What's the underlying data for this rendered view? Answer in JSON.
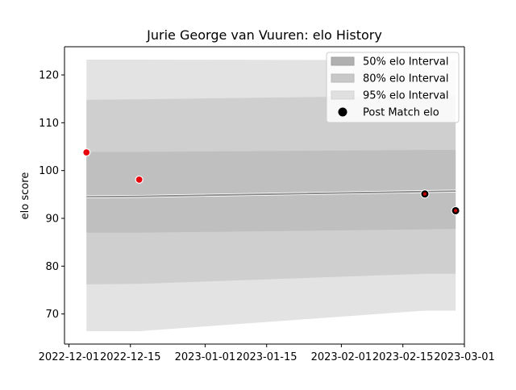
{
  "chart_data": {
    "type": "area",
    "title": "Jurie George van Vuuren: elo History",
    "xlabel": "",
    "ylabel": "elo score",
    "x_axis": {
      "type": "date",
      "range": [
        "2022-11-30",
        "2023-03-01"
      ],
      "ticks": [
        "2022-12-01",
        "2022-12-15",
        "2023-01-01",
        "2023-01-15",
        "2023-02-01",
        "2023-02-15",
        "2023-03-01"
      ]
    },
    "y_axis": {
      "range": [
        63.7,
        125.9
      ],
      "ticks": [
        70,
        80,
        90,
        100,
        110,
        120
      ]
    },
    "grid": false,
    "legend": {
      "placement": "top-right",
      "entries": [
        {
          "label": "50% elo Interval",
          "kind": "patch",
          "color": "#b0b0b0",
          "edge": "#a0a0a0"
        },
        {
          "label": "80% elo Interval",
          "kind": "patch",
          "color": "#c8c8c8",
          "edge": "#b8b8b8"
        },
        {
          "label": "95% elo Interval",
          "kind": "patch",
          "color": "#e0e0e0",
          "edge": "#d4d4d4"
        },
        {
          "label": "Post Match elo",
          "kind": "marker",
          "color": "#000000"
        }
      ]
    },
    "x": [
      "2022-12-05",
      "2022-12-17",
      "2023-02-20",
      "2023-02-27"
    ],
    "mean": [
      94.5,
      94.6,
      95.6,
      95.7
    ],
    "bands": [
      {
        "name": "95% elo Interval",
        "color": "#e3e3e3",
        "lower": [
          66.4,
          66.4,
          70.7,
          70.7
        ],
        "upper": [
          123.2,
          123.2,
          123.1,
          123.1
        ]
      },
      {
        "name": "80% elo Interval",
        "color": "#cfcfcf",
        "lower": [
          76.2,
          76.3,
          78.4,
          78.4
        ],
        "upper": [
          114.8,
          114.9,
          115.7,
          115.7
        ]
      },
      {
        "name": "50% elo Interval",
        "color": "#bfbfbf",
        "lower": [
          87.0,
          87.0,
          87.7,
          87.8
        ],
        "upper": [
          103.9,
          103.9,
          104.3,
          104.3
        ]
      }
    ],
    "pre_match_points": {
      "color": "#e8000b",
      "x": [
        "2022-12-05",
        "2022-12-17"
      ],
      "y": [
        103.8,
        98.1
      ]
    },
    "post_match_points": {
      "color": "#000000",
      "inner_color": "#c00000",
      "x": [
        "2023-02-20",
        "2023-02-27"
      ],
      "y": [
        95.1,
        91.6
      ]
    }
  }
}
